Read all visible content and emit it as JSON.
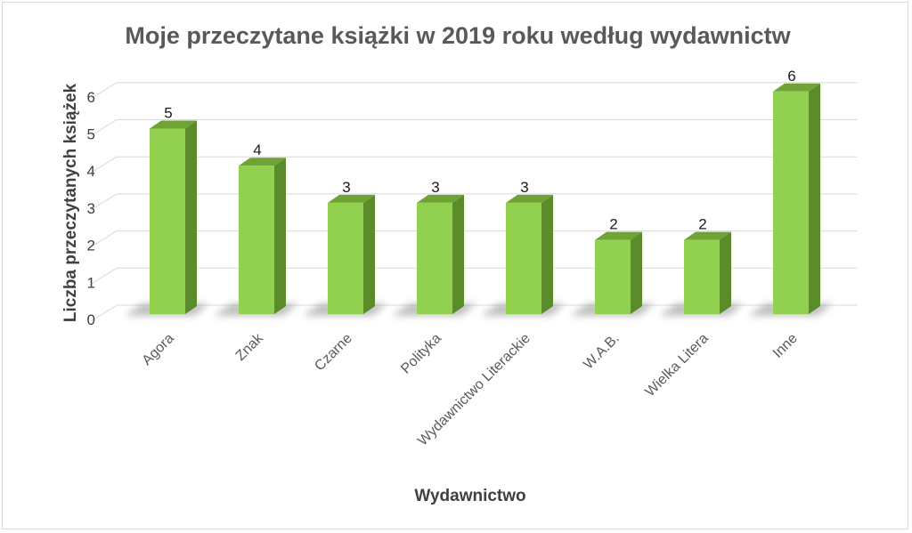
{
  "chart_data": {
    "type": "bar",
    "title": "Moje przeczytane książki w 2019 roku według wydawnictw",
    "xlabel": "Wydawnictwo",
    "ylabel": "Liczba przeczytanych książek",
    "categories": [
      "Agora",
      "Znak",
      "Czarne",
      "Polityka",
      "Wydawnictwo Literackie",
      "W.A.B.",
      "Wielka Litera",
      "Inne"
    ],
    "values": [
      5,
      4,
      3,
      3,
      3,
      2,
      2,
      6
    ],
    "ylim": [
      0,
      6
    ],
    "yticks": [
      "0",
      "1",
      "2",
      "3",
      "4",
      "5",
      "6"
    ],
    "grid": true,
    "legend": "none",
    "three_d": true,
    "colors": {
      "bar_front": "#92d050",
      "bar_side": "#5b8c2a",
      "bar_top": "#6fa336",
      "grid": "#d9d9d9",
      "floor_shadow": "#8c8c8c"
    }
  }
}
